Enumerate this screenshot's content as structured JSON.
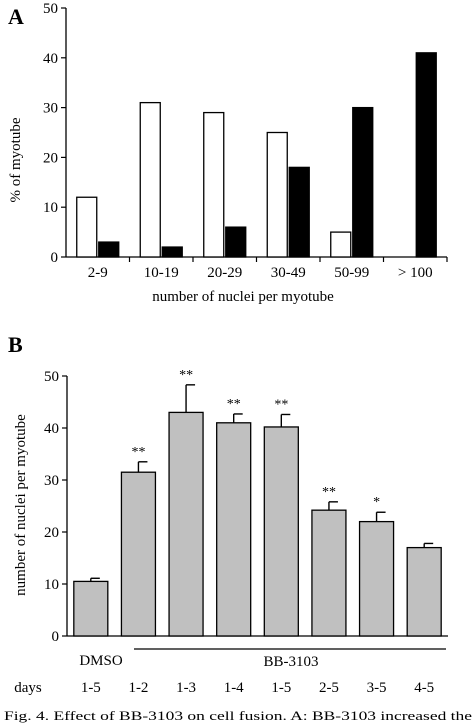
{
  "figure": {
    "caption": "Fig. 4. Effect of BB-3103 on cell fusion. A: BB-3103 increased the"
  },
  "chart_data": [
    {
      "panel": "A",
      "type": "bar",
      "categories": [
        "2-9",
        "10-19",
        "20-29",
        "30-49",
        "50-99",
        "> 100"
      ],
      "series": [
        {
          "fill": "#ffffff",
          "values": [
            12,
            31,
            29,
            25,
            5,
            null
          ]
        },
        {
          "fill": "#000000",
          "values": [
            3,
            2,
            6,
            18,
            30,
            41
          ]
        }
      ],
      "xlabel": "number of nuclei per myotube",
      "ylabel": "% of myotube",
      "ylim": [
        0,
        50
      ],
      "yticks": [
        "0",
        "10",
        "20",
        "30",
        "40",
        "50"
      ],
      "grid": false
    },
    {
      "panel": "B",
      "type": "bar",
      "categories": [
        "1-5",
        "1-2",
        "1-3",
        "1-4",
        "1-5",
        "2-5",
        "3-5",
        "4-5"
      ],
      "values": [
        10.5,
        31.5,
        43,
        41,
        40.2,
        24.2,
        22,
        17
      ],
      "errors": [
        0.6,
        2,
        5.3,
        1.7,
        2.4,
        1.6,
        1.8,
        0.8
      ],
      "significance": [
        "",
        "**",
        "**",
        "**",
        "**",
        "**",
        "*",
        ""
      ],
      "bar_fill": "#c0c0c0",
      "xlabel": "",
      "ylabel": "number of nuclei per myotube",
      "ylim": [
        0,
        50
      ],
      "yticks": [
        "0",
        "10",
        "20",
        "30",
        "40",
        "50"
      ],
      "group_labels": {
        "control": "DMSO",
        "treatment": "BB-3103"
      },
      "days_label": "days",
      "grid": false
    }
  ]
}
